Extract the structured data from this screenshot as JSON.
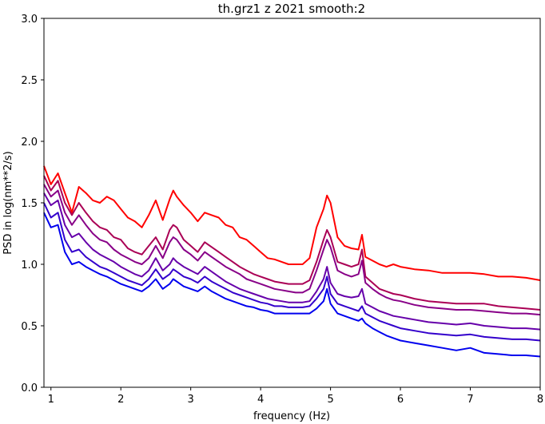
{
  "chart_data": {
    "type": "line",
    "title": "th.grz1 z 2021 smooth:2",
    "xlabel": "frequency (Hz)",
    "ylabel": "PSD in log(nm**2/s)",
    "xlim": [
      0.9,
      8.0
    ],
    "ylim": [
      0.0,
      3.0
    ],
    "xticks": [
      "1",
      "2",
      "3",
      "4",
      "5",
      "6",
      "7",
      "8"
    ],
    "yticks": [
      "0.0",
      "0.5",
      "1.0",
      "1.5",
      "2.0",
      "2.5",
      "3.0"
    ],
    "grid": false,
    "legend": "none",
    "series": [
      {
        "color": "#ff0000",
        "x": [
          0.9,
          1.0,
          1.1,
          1.2,
          1.3,
          1.4,
          1.5,
          1.6,
          1.7,
          1.8,
          1.9,
          2.0,
          2.1,
          2.2,
          2.3,
          2.4,
          2.5,
          2.6,
          2.7,
          2.75,
          2.8,
          2.9,
          3.0,
          3.1,
          3.2,
          3.3,
          3.4,
          3.5,
          3.6,
          3.7,
          3.8,
          3.9,
          4.0,
          4.1,
          4.2,
          4.3,
          4.4,
          4.5,
          4.6,
          4.7,
          4.8,
          4.9,
          4.95,
          5.0,
          5.1,
          5.2,
          5.3,
          5.4,
          5.45,
          5.5,
          5.6,
          5.7,
          5.8,
          5.9,
          6.0,
          6.2,
          6.4,
          6.6,
          6.8,
          7.0,
          7.2,
          7.4,
          7.6,
          7.8,
          8.0
        ],
        "y": [
          1.8,
          1.65,
          1.74,
          1.58,
          1.42,
          1.63,
          1.58,
          1.52,
          1.5,
          1.55,
          1.52,
          1.45,
          1.38,
          1.35,
          1.3,
          1.4,
          1.52,
          1.36,
          1.53,
          1.6,
          1.55,
          1.48,
          1.42,
          1.35,
          1.42,
          1.4,
          1.38,
          1.32,
          1.3,
          1.22,
          1.2,
          1.15,
          1.1,
          1.05,
          1.04,
          1.02,
          1.0,
          1.0,
          1.0,
          1.05,
          1.3,
          1.45,
          1.56,
          1.5,
          1.22,
          1.15,
          1.13,
          1.12,
          1.24,
          1.06,
          1.03,
          1.0,
          0.98,
          1.0,
          0.98,
          0.96,
          0.95,
          0.93,
          0.93,
          0.93,
          0.92,
          0.9,
          0.9,
          0.89,
          0.87
        ]
      },
      {
        "color": "#aa0055",
        "x": [
          0.9,
          1.0,
          1.1,
          1.2,
          1.3,
          1.4,
          1.5,
          1.6,
          1.7,
          1.8,
          1.9,
          2.0,
          2.1,
          2.2,
          2.3,
          2.4,
          2.5,
          2.6,
          2.7,
          2.75,
          2.8,
          2.9,
          3.0,
          3.1,
          3.2,
          3.3,
          3.4,
          3.5,
          3.6,
          3.7,
          3.8,
          3.9,
          4.0,
          4.1,
          4.2,
          4.3,
          4.4,
          4.5,
          4.6,
          4.7,
          4.8,
          4.9,
          4.95,
          5.0,
          5.1,
          5.2,
          5.3,
          5.4,
          5.45,
          5.5,
          5.6,
          5.7,
          5.8,
          5.9,
          6.0,
          6.2,
          6.4,
          6.6,
          6.8,
          7.0,
          7.2,
          7.4,
          7.6,
          7.8,
          8.0
        ],
        "y": [
          1.72,
          1.6,
          1.68,
          1.5,
          1.4,
          1.5,
          1.42,
          1.35,
          1.3,
          1.28,
          1.22,
          1.2,
          1.13,
          1.1,
          1.08,
          1.15,
          1.22,
          1.12,
          1.28,
          1.32,
          1.3,
          1.2,
          1.15,
          1.1,
          1.18,
          1.14,
          1.1,
          1.06,
          1.02,
          0.98,
          0.95,
          0.92,
          0.9,
          0.88,
          0.86,
          0.85,
          0.84,
          0.84,
          0.84,
          0.87,
          1.02,
          1.2,
          1.28,
          1.22,
          1.02,
          1.0,
          0.98,
          1.0,
          1.12,
          0.9,
          0.85,
          0.8,
          0.78,
          0.76,
          0.75,
          0.72,
          0.7,
          0.69,
          0.68,
          0.68,
          0.68,
          0.66,
          0.65,
          0.64,
          0.63
        ]
      },
      {
        "color": "#880088",
        "x": [
          0.9,
          1.0,
          1.1,
          1.2,
          1.3,
          1.4,
          1.5,
          1.6,
          1.7,
          1.8,
          1.9,
          2.0,
          2.1,
          2.2,
          2.3,
          2.4,
          2.5,
          2.6,
          2.7,
          2.75,
          2.8,
          2.9,
          3.0,
          3.1,
          3.2,
          3.3,
          3.4,
          3.5,
          3.6,
          3.7,
          3.8,
          3.9,
          4.0,
          4.1,
          4.2,
          4.3,
          4.4,
          4.5,
          4.6,
          4.7,
          4.8,
          4.9,
          4.95,
          5.0,
          5.1,
          5.2,
          5.3,
          5.4,
          5.45,
          5.5,
          5.6,
          5.7,
          5.8,
          5.9,
          6.0,
          6.2,
          6.4,
          6.6,
          6.8,
          7.0,
          7.2,
          7.4,
          7.6,
          7.8,
          8.0
        ],
        "y": [
          1.65,
          1.55,
          1.6,
          1.42,
          1.32,
          1.4,
          1.32,
          1.25,
          1.2,
          1.18,
          1.12,
          1.08,
          1.05,
          1.02,
          1.0,
          1.05,
          1.15,
          1.05,
          1.18,
          1.22,
          1.2,
          1.12,
          1.08,
          1.03,
          1.1,
          1.06,
          1.02,
          0.98,
          0.95,
          0.92,
          0.88,
          0.86,
          0.84,
          0.82,
          0.8,
          0.79,
          0.78,
          0.77,
          0.77,
          0.8,
          0.95,
          1.12,
          1.2,
          1.14,
          0.95,
          0.92,
          0.9,
          0.92,
          1.03,
          0.85,
          0.8,
          0.76,
          0.73,
          0.71,
          0.7,
          0.67,
          0.65,
          0.64,
          0.63,
          0.63,
          0.62,
          0.61,
          0.6,
          0.6,
          0.59
        ]
      },
      {
        "color": "#6600aa",
        "x": [
          0.9,
          1.0,
          1.1,
          1.2,
          1.3,
          1.4,
          1.5,
          1.6,
          1.7,
          1.8,
          1.9,
          2.0,
          2.1,
          2.2,
          2.3,
          2.4,
          2.5,
          2.6,
          2.7,
          2.75,
          2.8,
          2.9,
          3.0,
          3.1,
          3.2,
          3.3,
          3.4,
          3.5,
          3.6,
          3.7,
          3.8,
          3.9,
          4.0,
          4.1,
          4.2,
          4.3,
          4.4,
          4.5,
          4.6,
          4.7,
          4.8,
          4.9,
          4.95,
          5.0,
          5.1,
          5.2,
          5.3,
          5.4,
          5.45,
          5.5,
          5.6,
          5.7,
          5.8,
          5.9,
          6.0,
          6.2,
          6.4,
          6.6,
          6.8,
          7.0,
          7.2,
          7.4,
          7.6,
          7.8,
          8.0
        ],
        "y": [
          1.58,
          1.48,
          1.52,
          1.32,
          1.22,
          1.25,
          1.18,
          1.12,
          1.08,
          1.05,
          1.02,
          0.98,
          0.95,
          0.92,
          0.9,
          0.95,
          1.05,
          0.95,
          1.0,
          1.05,
          1.02,
          0.98,
          0.95,
          0.92,
          0.98,
          0.94,
          0.9,
          0.86,
          0.83,
          0.8,
          0.78,
          0.76,
          0.74,
          0.72,
          0.71,
          0.7,
          0.69,
          0.69,
          0.69,
          0.7,
          0.78,
          0.88,
          0.98,
          0.85,
          0.76,
          0.74,
          0.73,
          0.74,
          0.8,
          0.68,
          0.65,
          0.62,
          0.6,
          0.58,
          0.57,
          0.55,
          0.53,
          0.52,
          0.51,
          0.52,
          0.5,
          0.49,
          0.48,
          0.48,
          0.47
        ]
      },
      {
        "color": "#3300cc",
        "x": [
          0.9,
          1.0,
          1.1,
          1.2,
          1.3,
          1.4,
          1.5,
          1.6,
          1.7,
          1.8,
          1.9,
          2.0,
          2.1,
          2.2,
          2.3,
          2.4,
          2.5,
          2.6,
          2.7,
          2.75,
          2.8,
          2.9,
          3.0,
          3.1,
          3.2,
          3.3,
          3.4,
          3.5,
          3.6,
          3.7,
          3.8,
          3.9,
          4.0,
          4.1,
          4.2,
          4.3,
          4.4,
          4.5,
          4.6,
          4.7,
          4.8,
          4.9,
          4.95,
          5.0,
          5.1,
          5.2,
          5.3,
          5.4,
          5.45,
          5.5,
          5.6,
          5.7,
          5.8,
          5.9,
          6.0,
          6.2,
          6.4,
          6.6,
          6.8,
          7.0,
          7.2,
          7.4,
          7.6,
          7.8,
          8.0
        ],
        "y": [
          1.5,
          1.38,
          1.42,
          1.2,
          1.1,
          1.12,
          1.06,
          1.02,
          0.98,
          0.96,
          0.93,
          0.9,
          0.87,
          0.85,
          0.83,
          0.88,
          0.96,
          0.88,
          0.92,
          0.96,
          0.94,
          0.9,
          0.88,
          0.85,
          0.9,
          0.86,
          0.83,
          0.8,
          0.77,
          0.75,
          0.73,
          0.71,
          0.69,
          0.68,
          0.66,
          0.66,
          0.65,
          0.65,
          0.65,
          0.66,
          0.72,
          0.8,
          0.9,
          0.76,
          0.68,
          0.66,
          0.64,
          0.62,
          0.66,
          0.6,
          0.57,
          0.54,
          0.52,
          0.5,
          0.48,
          0.46,
          0.44,
          0.43,
          0.42,
          0.43,
          0.41,
          0.4,
          0.39,
          0.39,
          0.38
        ]
      },
      {
        "color": "#0000ee",
        "x": [
          0.9,
          1.0,
          1.1,
          1.2,
          1.3,
          1.4,
          1.5,
          1.6,
          1.7,
          1.8,
          1.9,
          2.0,
          2.1,
          2.2,
          2.3,
          2.4,
          2.5,
          2.6,
          2.7,
          2.75,
          2.8,
          2.9,
          3.0,
          3.1,
          3.2,
          3.3,
          3.4,
          3.5,
          3.6,
          3.7,
          3.8,
          3.9,
          4.0,
          4.1,
          4.2,
          4.3,
          4.4,
          4.5,
          4.6,
          4.7,
          4.8,
          4.9,
          4.95,
          5.0,
          5.1,
          5.2,
          5.3,
          5.4,
          5.45,
          5.5,
          5.6,
          5.7,
          5.8,
          5.9,
          6.0,
          6.2,
          6.4,
          6.6,
          6.8,
          7.0,
          7.2,
          7.4,
          7.6,
          7.8,
          8.0
        ],
        "y": [
          1.42,
          1.3,
          1.32,
          1.1,
          1.0,
          1.02,
          0.98,
          0.95,
          0.92,
          0.9,
          0.87,
          0.84,
          0.82,
          0.8,
          0.78,
          0.82,
          0.88,
          0.8,
          0.84,
          0.88,
          0.86,
          0.82,
          0.8,
          0.78,
          0.82,
          0.78,
          0.75,
          0.72,
          0.7,
          0.68,
          0.66,
          0.65,
          0.63,
          0.62,
          0.6,
          0.6,
          0.6,
          0.6,
          0.6,
          0.6,
          0.64,
          0.7,
          0.8,
          0.68,
          0.6,
          0.58,
          0.56,
          0.54,
          0.56,
          0.52,
          0.48,
          0.45,
          0.42,
          0.4,
          0.38,
          0.36,
          0.34,
          0.32,
          0.3,
          0.32,
          0.28,
          0.27,
          0.26,
          0.26,
          0.25
        ]
      }
    ]
  }
}
